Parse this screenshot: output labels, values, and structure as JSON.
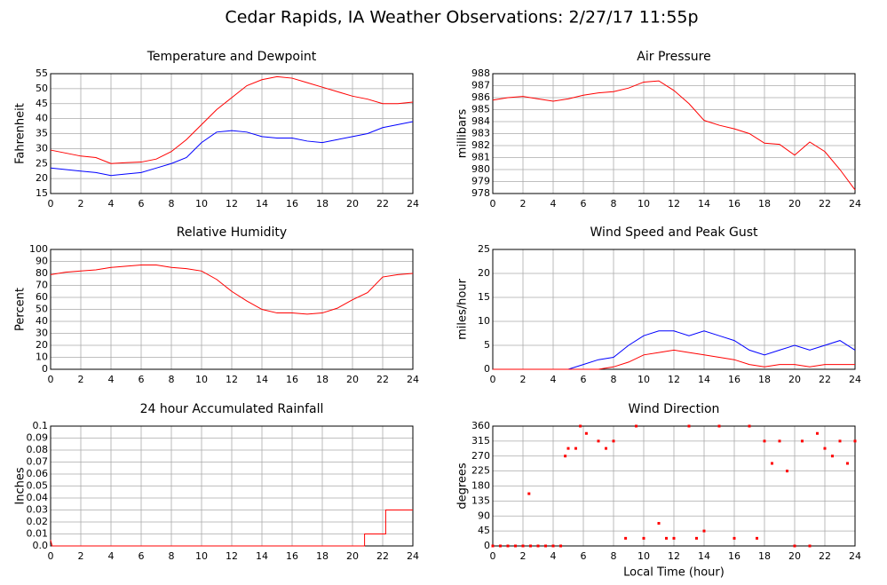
{
  "title": "Cedar Rapids, IA Weather Observations: 2/27/17 11:55p",
  "chart_data": [
    {
      "type": "line",
      "title": "Temperature and Dewpoint",
      "ylabel": "Fahrenheit",
      "x": [
        0,
        1,
        2,
        3,
        4,
        5,
        6,
        7,
        8,
        9,
        10,
        11,
        12,
        13,
        14,
        15,
        16,
        17,
        18,
        19,
        20,
        21,
        22,
        23,
        24
      ],
      "series": [
        {
          "color": "#ff0000",
          "values": [
            29.5,
            28.5,
            27.5,
            27,
            25,
            25.3,
            25.5,
            26.5,
            29,
            33,
            38,
            43,
            47,
            51,
            53,
            54,
            53.5,
            52,
            50.5,
            49,
            47.5,
            46.5,
            45,
            45,
            45.5
          ]
        },
        {
          "color": "#0000ff",
          "values": [
            23.5,
            23,
            22.5,
            22,
            21,
            21.5,
            22,
            23.5,
            25,
            27,
            32,
            35.5,
            36,
            35.5,
            34,
            33.5,
            33.5,
            32.5,
            32,
            33,
            34,
            35,
            37,
            38,
            39
          ]
        }
      ],
      "xlim": [
        0,
        24
      ],
      "xticks": [
        0,
        2,
        4,
        6,
        8,
        10,
        12,
        14,
        16,
        18,
        20,
        22,
        24
      ],
      "ylim": [
        15,
        55
      ],
      "yticks": [
        15,
        20,
        25,
        30,
        35,
        40,
        45,
        50,
        55
      ],
      "grid": true
    },
    {
      "type": "line",
      "title": "Air Pressure",
      "ylabel": "millibars",
      "x": [
        0,
        1,
        2,
        3,
        4,
        5,
        6,
        7,
        8,
        9,
        10,
        11,
        12,
        13,
        14,
        15,
        16,
        17,
        18,
        19,
        20,
        21,
        22,
        23,
        24
      ],
      "series": [
        {
          "color": "#ff0000",
          "values": [
            985.8,
            986,
            986.1,
            985.9,
            985.7,
            985.9,
            986.2,
            986.4,
            986.5,
            986.8,
            987.3,
            987.4,
            986.6,
            985.5,
            984.1,
            983.7,
            983.4,
            983,
            982.2,
            982.1,
            981.2,
            982.3,
            981.5,
            980,
            978.3
          ]
        }
      ],
      "xlim": [
        0,
        24
      ],
      "xticks": [
        0,
        2,
        4,
        6,
        8,
        10,
        12,
        14,
        16,
        18,
        20,
        22,
        24
      ],
      "ylim": [
        978,
        988
      ],
      "yticks": [
        978,
        979,
        980,
        981,
        982,
        983,
        984,
        985,
        986,
        987,
        988
      ],
      "grid": true
    },
    {
      "type": "line",
      "title": "Relative Humidity",
      "ylabel": "Percent",
      "x": [
        0,
        1,
        2,
        3,
        4,
        5,
        6,
        7,
        8,
        9,
        10,
        11,
        12,
        13,
        14,
        15,
        16,
        17,
        18,
        19,
        20,
        21,
        22,
        23,
        24
      ],
      "series": [
        {
          "color": "#ff0000",
          "values": [
            79,
            81,
            82,
            83,
            85,
            86,
            87,
            87,
            85,
            84,
            82,
            75,
            65,
            57,
            50,
            47,
            47,
            46,
            47,
            51,
            58,
            64,
            77,
            79,
            80
          ]
        }
      ],
      "xlim": [
        0,
        24
      ],
      "xticks": [
        0,
        2,
        4,
        6,
        8,
        10,
        12,
        14,
        16,
        18,
        20,
        22,
        24
      ],
      "ylim": [
        0,
        100
      ],
      "yticks": [
        0,
        10,
        20,
        30,
        40,
        50,
        60,
        70,
        80,
        90,
        100
      ],
      "grid": true
    },
    {
      "type": "line",
      "title": "Wind Speed and Peak Gust",
      "ylabel": "miles/hour",
      "x": [
        0,
        1,
        2,
        3,
        4,
        5,
        6,
        7,
        8,
        9,
        10,
        11,
        12,
        13,
        14,
        15,
        16,
        17,
        18,
        19,
        20,
        21,
        22,
        23,
        24
      ],
      "series": [
        {
          "color": "#0000ff",
          "values": [
            0,
            0,
            0,
            0,
            0,
            0,
            1,
            2,
            2.5,
            5,
            7,
            8,
            8,
            7,
            8,
            7,
            6,
            4,
            3,
            4,
            5,
            4,
            5,
            6,
            4
          ]
        },
        {
          "color": "#ff0000",
          "values": [
            0,
            0,
            0,
            0,
            0,
            0,
            0,
            0,
            0.5,
            1.5,
            3,
            3.5,
            4,
            3.5,
            3,
            2.5,
            2,
            1,
            0.5,
            1,
            1,
            0.5,
            1,
            1,
            1
          ]
        }
      ],
      "xlim": [
        0,
        24
      ],
      "xticks": [
        0,
        2,
        4,
        6,
        8,
        10,
        12,
        14,
        16,
        18,
        20,
        22,
        24
      ],
      "ylim": [
        0,
        25
      ],
      "yticks": [
        0,
        5,
        10,
        15,
        20,
        25
      ],
      "grid": true
    },
    {
      "type": "line",
      "title": "24 hour Accumulated Rainfall",
      "ylabel": "Inches",
      "x": [
        0,
        0.1,
        20.8,
        20.8,
        22.2,
        22.2,
        24
      ],
      "series": [
        {
          "color": "#ff0000",
          "values": [
            0.005,
            0,
            0,
            0.01,
            0.01,
            0.03,
            0.03
          ]
        }
      ],
      "xlim": [
        0,
        24
      ],
      "xticks": [
        0,
        2,
        4,
        6,
        8,
        10,
        12,
        14,
        16,
        18,
        20,
        22,
        24
      ],
      "ylim": [
        0,
        0.1
      ],
      "yticks": [
        {
          "value": 0,
          "label": "0.0"
        },
        0.01,
        0.02,
        0.03,
        0.04,
        0.05,
        0.06,
        0.07,
        0.08,
        0.09,
        0.1
      ],
      "grid": true
    },
    {
      "type": "scatter",
      "title": "Wind Direction",
      "ylabel": "degrees",
      "xlabel": "Local Time (hour)",
      "x": [
        0,
        0.5,
        1,
        1.5,
        2,
        2.4,
        2.5,
        3,
        3.5,
        4,
        4.5,
        4.8,
        5,
        5.5,
        5.8,
        6.2,
        7,
        7.5,
        8,
        8.8,
        9.5,
        10,
        11,
        11.5,
        12,
        13,
        13.5,
        14,
        15,
        16,
        17,
        17.5,
        18,
        18.5,
        19,
        19.5,
        20,
        20.5,
        21,
        21.5,
        22,
        22.5,
        23,
        23.5,
        24
      ],
      "series": [
        {
          "color": "#ff0000",
          "values": [
            0,
            0,
            0,
            0,
            0,
            157,
            0,
            0,
            0,
            0,
            0,
            270,
            293,
            293,
            360,
            338,
            315,
            293,
            315,
            23,
            360,
            23,
            68,
            23,
            23,
            360,
            23,
            45,
            360,
            23,
            360,
            23,
            315,
            248,
            315,
            225,
            0,
            315,
            0,
            338,
            293,
            270,
            315,
            248,
            315
          ]
        }
      ],
      "xlim": [
        0,
        24
      ],
      "xticks": [
        0,
        2,
        4,
        6,
        8,
        10,
        12,
        14,
        16,
        18,
        20,
        22,
        24
      ],
      "ylim": [
        0,
        360
      ],
      "yticks": [
        0,
        45,
        90,
        135,
        180,
        225,
        270,
        315,
        360
      ],
      "grid": true
    }
  ]
}
